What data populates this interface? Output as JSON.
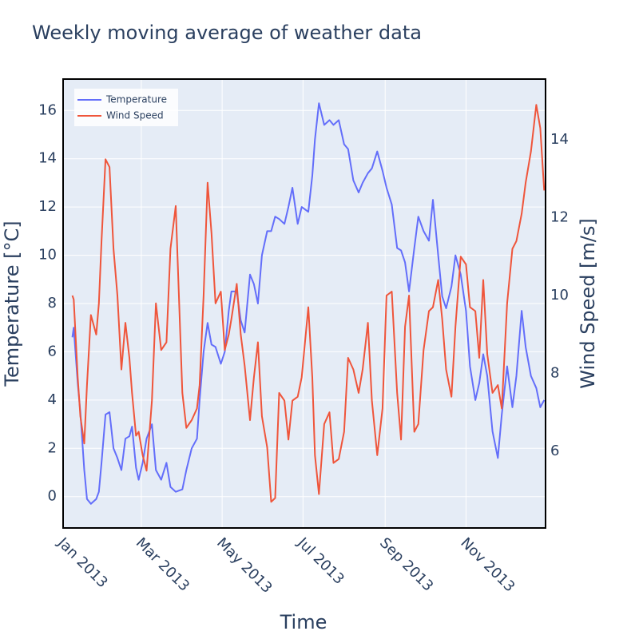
{
  "chart_data": {
    "type": "line",
    "title": "Weekly moving average of weather data",
    "xlabel": "Time",
    "ylabel": "Temperature [°C]",
    "y2label": "Wind Speed [m/s]",
    "x": [
      "2013-01-08",
      "2013-01-09",
      "2013-01-12",
      "2013-01-14",
      "2013-01-17",
      "2013-01-19",
      "2013-01-22",
      "2013-01-26",
      "2013-01-28",
      "2013-01-30",
      "2013-02-02",
      "2013-02-05",
      "2013-02-08",
      "2013-02-11",
      "2013-02-14",
      "2013-02-17",
      "2013-02-20",
      "2013-02-22",
      "2013-02-25",
      "2013-02-27",
      "2013-03-02",
      "2013-03-05",
      "2013-03-09",
      "2013-03-12",
      "2013-03-16",
      "2013-03-20",
      "2013-03-23",
      "2013-03-27",
      "2013-04-01",
      "2013-04-04",
      "2013-04-08",
      "2013-04-12",
      "2013-04-14",
      "2013-04-17",
      "2013-04-20",
      "2013-04-23",
      "2013-04-26",
      "2013-04-30",
      "2013-05-03",
      "2013-05-06",
      "2013-05-08",
      "2013-05-12",
      "2013-05-15",
      "2013-05-18",
      "2013-05-22",
      "2013-05-25",
      "2013-05-28",
      "2013-05-31",
      "2013-06-04",
      "2013-06-07",
      "2013-06-10",
      "2013-06-13",
      "2013-06-17",
      "2013-06-20",
      "2013-06-23",
      "2013-06-27",
      "2013-06-30",
      "2013-07-05",
      "2013-07-08",
      "2013-07-10",
      "2013-07-13",
      "2013-07-17",
      "2013-07-21",
      "2013-07-24",
      "2013-07-28",
      "2013-08-01",
      "2013-08-04",
      "2013-08-08",
      "2013-08-12",
      "2013-08-15",
      "2013-08-19",
      "2013-08-22",
      "2013-08-26",
      "2013-08-30",
      "2013-09-02",
      "2013-09-06",
      "2013-09-10",
      "2013-09-13",
      "2013-09-16",
      "2013-09-19",
      "2013-09-23",
      "2013-09-26",
      "2013-09-30",
      "2013-10-04",
      "2013-10-07",
      "2013-10-11",
      "2013-10-14",
      "2013-10-17",
      "2013-10-21",
      "2013-10-24",
      "2013-10-28",
      "2013-11-01",
      "2013-11-04",
      "2013-11-08",
      "2013-11-11",
      "2013-11-14",
      "2013-11-17",
      "2013-11-21",
      "2013-11-25",
      "2013-11-28",
      "2013-12-02",
      "2013-12-06",
      "2013-12-09",
      "2013-12-13",
      "2013-12-16",
      "2013-12-20",
      "2013-12-24",
      "2013-12-27",
      "2013-12-30"
    ],
    "series": [
      {
        "name": "Temperature",
        "color": "#636efa",
        "axis": "y",
        "values": [
          6.6,
          7.0,
          4.7,
          3.5,
          1.1,
          -0.1,
          -0.3,
          -0.1,
          0.2,
          1.4,
          3.4,
          3.5,
          2.0,
          1.6,
          1.1,
          2.4,
          2.5,
          2.9,
          1.2,
          0.7,
          1.4,
          2.4,
          3.0,
          1.1,
          0.7,
          1.4,
          0.4,
          0.2,
          0.3,
          1.1,
          2.0,
          2.4,
          4.0,
          6.0,
          7.2,
          6.3,
          6.2,
          5.5,
          6.0,
          7.7,
          8.5,
          8.5,
          7.3,
          6.8,
          9.2,
          8.8,
          8.0,
          10.0,
          11.0,
          11.0,
          11.6,
          11.5,
          11.3,
          12.0,
          12.8,
          11.3,
          12.0,
          11.8,
          13.3,
          14.8,
          16.3,
          15.4,
          15.6,
          15.4,
          15.6,
          14.6,
          14.4,
          13.1,
          12.6,
          13.0,
          13.4,
          13.6,
          14.3,
          13.5,
          12.8,
          12.1,
          10.3,
          10.2,
          9.7,
          8.5,
          10.3,
          11.6,
          11.0,
          10.6,
          12.3,
          10.0,
          8.3,
          7.8,
          8.7,
          10.0,
          9.2,
          7.7,
          5.4,
          4.0,
          4.7,
          5.9,
          5.0,
          2.7,
          1.6,
          3.4,
          5.4,
          3.7,
          5.0,
          7.7,
          6.2,
          5.0,
          4.5,
          3.7,
          4.0
        ]
      },
      {
        "name": "Wind Speed",
        "color": "#EF553B",
        "axis": "y2",
        "values": [
          10.0,
          9.9,
          7.9,
          6.9,
          6.2,
          7.7,
          9.5,
          9.0,
          9.8,
          11.4,
          13.5,
          13.3,
          11.2,
          10.0,
          8.1,
          9.3,
          8.4,
          7.5,
          6.4,
          6.5,
          5.9,
          5.5,
          7.3,
          9.8,
          8.6,
          8.8,
          11.2,
          12.3,
          7.5,
          6.6,
          6.8,
          7.1,
          7.7,
          10.0,
          12.9,
          11.6,
          9.8,
          10.1,
          8.6,
          9.0,
          9.4,
          10.3,
          9.0,
          8.2,
          6.8,
          7.9,
          8.8,
          6.9,
          6.1,
          4.7,
          4.8,
          7.5,
          7.3,
          6.3,
          7.3,
          7.4,
          7.9,
          9.7,
          7.9,
          5.9,
          4.9,
          6.7,
          7.0,
          5.7,
          5.8,
          6.5,
          8.4,
          8.1,
          7.5,
          8.1,
          9.3,
          7.3,
          5.9,
          7.1,
          10.0,
          10.1,
          7.5,
          6.3,
          9.2,
          10.0,
          6.5,
          6.7,
          8.6,
          9.6,
          9.7,
          10.4,
          9.4,
          8.1,
          7.4,
          9.2,
          11.0,
          10.8,
          9.7,
          9.6,
          8.4,
          10.4,
          8.5,
          7.5,
          7.7,
          7.1,
          9.8,
          11.2,
          11.4,
          12.1,
          12.9,
          13.7,
          14.9,
          14.3,
          12.7
        ]
      }
    ],
    "xlim": [
      "2013-01-01",
      "2013-12-31"
    ],
    "xticks": [
      {
        "value": "2013-01-01",
        "label": "Jan 2013"
      },
      {
        "value": "2013-03-01",
        "label": "Mar 2013"
      },
      {
        "value": "2013-05-01",
        "label": "May 2013"
      },
      {
        "value": "2013-07-01",
        "label": "Jul 2013"
      },
      {
        "value": "2013-09-01",
        "label": "Sep 2013"
      },
      {
        "value": "2013-11-01",
        "label": "Nov 2013"
      }
    ],
    "ylim": [
      -1.3,
      17.3
    ],
    "yticks": [
      0,
      2,
      4,
      6,
      8,
      10,
      12,
      14,
      16
    ],
    "y2lim": [
      4.03,
      15.56
    ],
    "y2ticks": [
      6,
      8,
      10,
      12,
      14
    ],
    "grid": true,
    "legend": "upper left"
  }
}
